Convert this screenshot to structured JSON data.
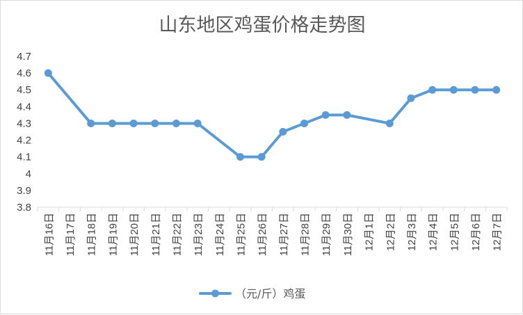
{
  "chart_data": {
    "type": "line",
    "title": "山东地区鸡蛋价格走势图",
    "x": [
      "11月16日",
      "11月17日",
      "11月18日",
      "11月19日",
      "11月20日",
      "11月21日",
      "11月22日",
      "11月23日",
      "11月24日",
      "11月25日",
      "11月26日",
      "11月27日",
      "11月28日",
      "11月29日",
      "11月30日",
      "12月1日",
      "12月2日",
      "12月3日",
      "12月4日",
      "12月5日",
      "12月6日",
      "12月7日"
    ],
    "series": [
      {
        "name": "（元/斤）鸡蛋",
        "color": "#5b9bd5",
        "values": [
          4.6,
          null,
          4.3,
          4.3,
          4.3,
          4.3,
          4.3,
          4.3,
          null,
          4.1,
          4.1,
          4.25,
          4.3,
          4.35,
          4.35,
          null,
          4.3,
          4.45,
          4.5,
          4.5,
          4.5,
          4.5
        ]
      }
    ],
    "yticks": [
      "4.7",
      "4.6",
      "4.5",
      "4.4",
      "4.3",
      "4.2",
      "4.1",
      "4",
      "3.9",
      "3.8"
    ],
    "ylim": [
      3.8,
      4.7
    ],
    "ystep": 0.1,
    "grid": false,
    "legend": "bottom",
    "xlabel": "",
    "ylabel": ""
  }
}
